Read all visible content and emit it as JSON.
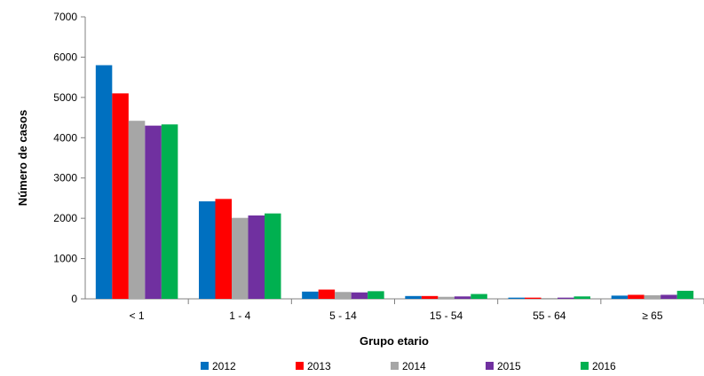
{
  "chart_data": {
    "type": "bar",
    "xlabel": "Grupo etario",
    "ylabel": "Número de casos",
    "ylim": [
      0,
      7000
    ],
    "yticks": [
      0,
      1000,
      2000,
      3000,
      4000,
      5000,
      6000,
      7000
    ],
    "grid": false,
    "legend_position": "bottom",
    "categories": [
      "< 1",
      "1 - 4",
      "5 - 14",
      "15 - 54",
      "55 - 64",
      "≥ 65"
    ],
    "series": [
      {
        "name": "2012",
        "color": "#0070C0",
        "values": [
          5800,
          2420,
          180,
          70,
          30,
          80
        ]
      },
      {
        "name": "2013",
        "color": "#FF0000",
        "values": [
          5100,
          2480,
          230,
          70,
          30,
          100
        ]
      },
      {
        "name": "2014",
        "color": "#A6A6A6",
        "values": [
          4420,
          2010,
          170,
          50,
          20,
          90
        ]
      },
      {
        "name": "2015",
        "color": "#7030A0",
        "values": [
          4300,
          2070,
          160,
          60,
          30,
          100
        ]
      },
      {
        "name": "2016",
        "color": "#00B050",
        "values": [
          4330,
          2120,
          190,
          120,
          60,
          200
        ]
      }
    ]
  }
}
